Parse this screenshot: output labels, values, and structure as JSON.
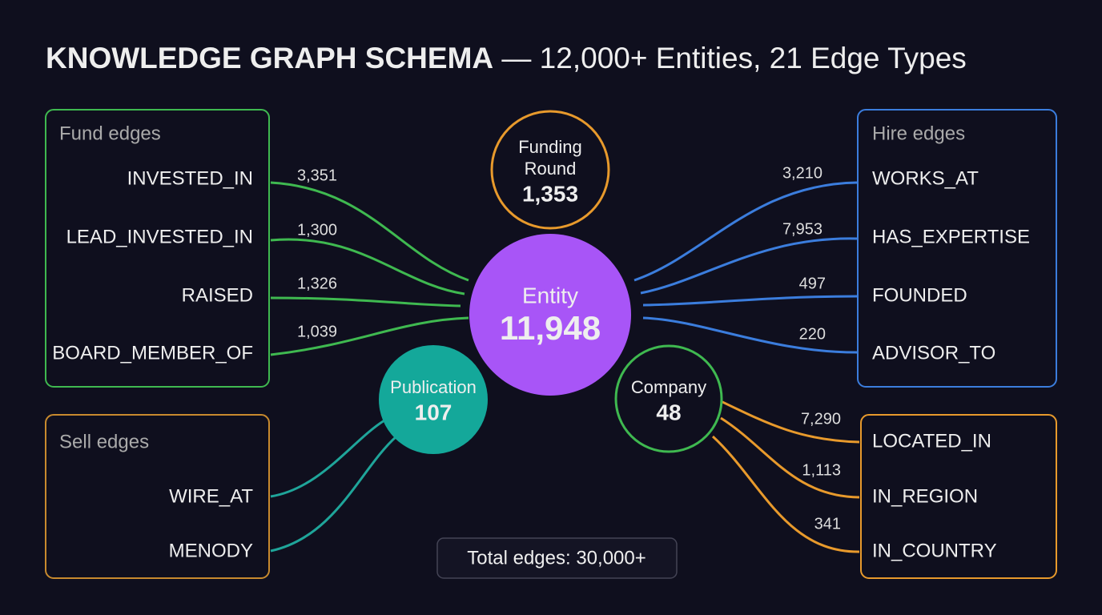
{
  "title": {
    "main": "KNOWLEDGE GRAPH SCHEMA",
    "rest": "— 12,000+ Entities, 21 Edge Types"
  },
  "groups": {
    "fund": {
      "title": "Fund edges",
      "edges": [
        {
          "label": "INVESTED_IN",
          "count": "3,351"
        },
        {
          "label": "LEAD_INVESTED_IN",
          "count": "1,300"
        },
        {
          "label": "RAISED",
          "count": "1,326"
        },
        {
          "label": "BOARD_MEMBER_OF",
          "count": "1,039"
        }
      ]
    },
    "sell": {
      "title": "Sell edges",
      "edges": [
        {
          "label": "WIRE_AT"
        },
        {
          "label": "MENODY"
        }
      ]
    },
    "hire": {
      "title": "Hire edges",
      "edges": [
        {
          "label": "WORKS_AT",
          "count": "3,210"
        },
        {
          "label": "HAS_EXPERTISE",
          "count": "7,953"
        },
        {
          "label": "FOUNDED",
          "count": "497"
        },
        {
          "label": "ADVISOR_TO",
          "count": "220"
        }
      ]
    },
    "location": {
      "edges": [
        {
          "label": "LOCATED_IN",
          "count": "7,290"
        },
        {
          "label": "IN_REGION",
          "count": "1,113"
        },
        {
          "label": "IN_COUNTRY",
          "count": "341"
        }
      ]
    }
  },
  "nodes": {
    "funding_round": {
      "label": [
        "Funding",
        "Round"
      ],
      "count": "1,353"
    },
    "entity": {
      "label": "Entity",
      "count": "11,948"
    },
    "publication": {
      "label": "Publication",
      "count": "107"
    },
    "company": {
      "label": "Company",
      "count": "48"
    }
  },
  "footer": "Total edges: 30,000+"
}
